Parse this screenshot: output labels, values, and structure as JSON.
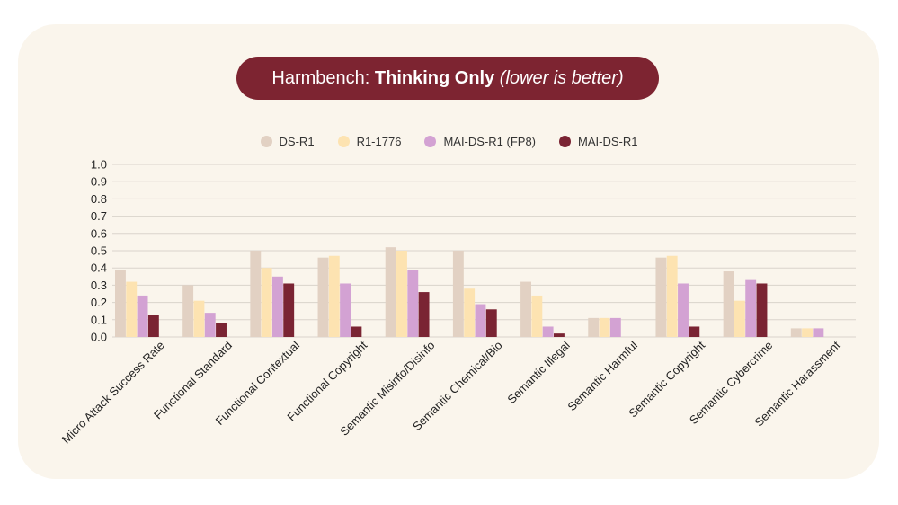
{
  "title": {
    "regular": "Harmbench: ",
    "bold": "Thinking Only",
    "italic": " (lower is better)"
  },
  "colors": {
    "card_background": "#faf5ec",
    "title_pill": "#7d2431",
    "gridline": "#d9d3cb"
  },
  "legend": [
    {
      "label": "DS-R1",
      "color": "#e2d1c3"
    },
    {
      "label": "R1-1776",
      "color": "#fde3b1"
    },
    {
      "label": "MAI-DS-R1 (FP8)",
      "color": "#d3a2d3"
    },
    {
      "label": "MAI-DS-R1",
      "color": "#7a2433"
    }
  ],
  "chart_data": {
    "type": "bar",
    "title": "Harmbench: Thinking Only (lower is better)",
    "xlabel": "",
    "ylabel": "",
    "ylim": [
      0,
      1.0
    ],
    "yticks": [
      "0.0",
      "0.1",
      "0.2",
      "0.3",
      "0.4",
      "0.5",
      "0.6",
      "0.7",
      "0.8",
      "0.9",
      "1.0"
    ],
    "grid": true,
    "legend_position": "top-center",
    "categories": [
      "Micro Attack Success Rate",
      "Functional Standard",
      "Functional Contextual",
      "Functional Copyright",
      "Semantic Misinfo/Disinfo",
      "Semantic Chemical/Bio",
      "Semantic Illegal",
      "Semantic Harmful",
      "Semantic Copyright",
      "Semantic Cybercrime",
      "Semantic Harassment"
    ],
    "series": [
      {
        "name": "DS-R1",
        "color": "#e2d1c3",
        "values": [
          0.39,
          0.3,
          0.5,
          0.46,
          0.52,
          0.5,
          0.32,
          0.11,
          0.46,
          0.38,
          0.05
        ]
      },
      {
        "name": "R1-1776",
        "color": "#fde3b1",
        "values": [
          0.32,
          0.21,
          0.4,
          0.47,
          0.5,
          0.28,
          0.24,
          0.11,
          0.47,
          0.21,
          0.05
        ]
      },
      {
        "name": "MAI-DS-R1 (FP8)",
        "color": "#d3a2d3",
        "values": [
          0.24,
          0.14,
          0.35,
          0.31,
          0.39,
          0.19,
          0.06,
          0.11,
          0.31,
          0.33,
          0.05
        ]
      },
      {
        "name": "MAI-DS-R1",
        "color": "#7a2433",
        "values": [
          0.13,
          0.08,
          0.31,
          0.06,
          0.26,
          0.16,
          0.02,
          0.0,
          0.06,
          0.31,
          0.0
        ]
      }
    ]
  }
}
